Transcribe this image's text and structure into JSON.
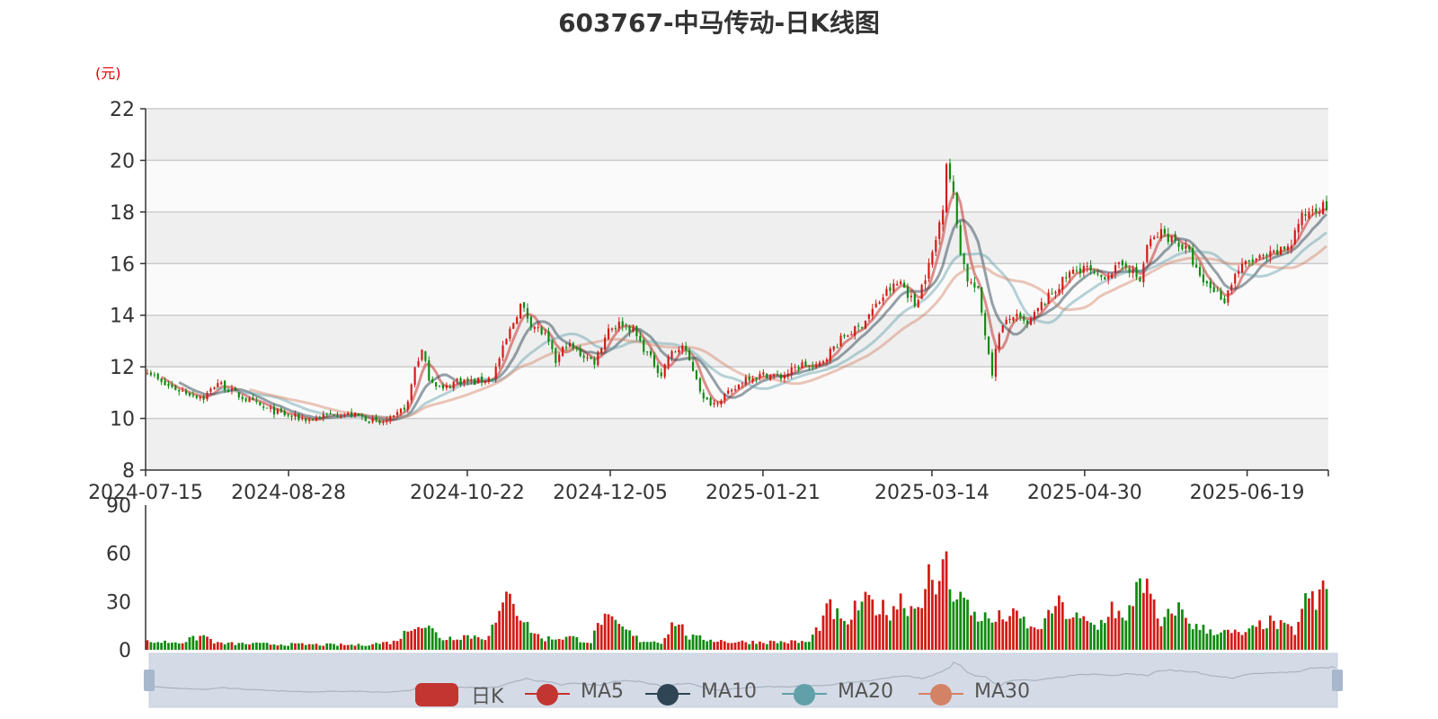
{
  "title": "603767-中马传动-日K线图",
  "unit_label": "(元)",
  "colors": {
    "up": "#c23531",
    "up_bar": "#d31a14",
    "down": "#0f8a0f",
    "ma5": "#c23531",
    "ma10": "#2f4554",
    "ma20": "#61a0a8",
    "ma30": "#d48265",
    "grid": "#cccccc",
    "band": "#efefef",
    "zoom_fill": "#d4dbe6",
    "zoom_handle": "#a7b7cc"
  },
  "legend": [
    {
      "key": "kline",
      "label": "日K"
    },
    {
      "key": "ma5",
      "label": "MA5"
    },
    {
      "key": "ma10",
      "label": "MA10"
    },
    {
      "key": "ma20",
      "label": "MA20"
    },
    {
      "key": "ma30",
      "label": "MA30"
    }
  ],
  "chart_data": [
    {
      "type": "candlestick",
      "name": "price",
      "ylim": [
        8,
        22
      ],
      "yticks": [
        8,
        10,
        12,
        14,
        16,
        18,
        20,
        22
      ],
      "xticks": [
        "2024-07-15",
        "2024-08-28",
        "2024-10-22",
        "2024-12-05",
        "2025-01-21",
        "2025-03-14",
        "2025-04-30",
        "2025-06-19"
      ],
      "grid": true,
      "anchors": [
        [
          0,
          11.9
        ],
        [
          4,
          11.35
        ],
        [
          9,
          11.1
        ],
        [
          16,
          10.8
        ],
        [
          20,
          11.4
        ],
        [
          25,
          10.95
        ],
        [
          33,
          10.4
        ],
        [
          40,
          10.1
        ],
        [
          46,
          9.95
        ],
        [
          53,
          10.2
        ],
        [
          60,
          10.1
        ],
        [
          66,
          9.8
        ],
        [
          70,
          10.0
        ],
        [
          74,
          10.6
        ],
        [
          76,
          12.0
        ],
        [
          78,
          12.6
        ],
        [
          80,
          11.6
        ],
        [
          84,
          11.1
        ],
        [
          88,
          11.5
        ],
        [
          93,
          11.4
        ],
        [
          98,
          11.6
        ],
        [
          103,
          13.4
        ],
        [
          106,
          14.4
        ],
        [
          109,
          13.7
        ],
        [
          113,
          13.2
        ],
        [
          116,
          12.2
        ],
        [
          119,
          12.9
        ],
        [
          123,
          12.5
        ],
        [
          127,
          12.2
        ],
        [
          131,
          13.5
        ],
        [
          135,
          13.7
        ],
        [
          138,
          13.4
        ],
        [
          142,
          12.5
        ],
        [
          146,
          11.7
        ],
        [
          148,
          12.4
        ],
        [
          152,
          12.8
        ],
        [
          156,
          11.6
        ],
        [
          158,
          10.7
        ],
        [
          161,
          10.6
        ],
        [
          164,
          10.9
        ],
        [
          166,
          11.0
        ],
        [
          170,
          11.6
        ],
        [
          176,
          11.7
        ],
        [
          180,
          11.6
        ],
        [
          186,
          12.1
        ],
        [
          190,
          11.95
        ],
        [
          194,
          12.6
        ],
        [
          198,
          13.2
        ],
        [
          202,
          13.5
        ],
        [
          206,
          14.2
        ],
        [
          210,
          14.9
        ],
        [
          214,
          15.3
        ],
        [
          218,
          14.4
        ],
        [
          222,
          15.9
        ],
        [
          224,
          16.9
        ],
        [
          226,
          18.3
        ],
        [
          227,
          20.0
        ],
        [
          229,
          18.6
        ],
        [
          231,
          16.5
        ],
        [
          233,
          15.4
        ],
        [
          236,
          14.9
        ],
        [
          238,
          13.3
        ],
        [
          240,
          11.8
        ],
        [
          242,
          13.4
        ],
        [
          246,
          14.0
        ],
        [
          250,
          13.6
        ],
        [
          254,
          14.4
        ],
        [
          258,
          15.0
        ],
        [
          262,
          15.6
        ],
        [
          266,
          15.9
        ],
        [
          270,
          15.4
        ],
        [
          274,
          15.7
        ],
        [
          278,
          16.0
        ],
        [
          282,
          15.3
        ],
        [
          284,
          16.7
        ],
        [
          288,
          17.2
        ],
        [
          292,
          16.9
        ],
        [
          296,
          16.4
        ],
        [
          299,
          15.4
        ],
        [
          303,
          15.0
        ],
        [
          306,
          14.6
        ],
        [
          309,
          15.6
        ],
        [
          313,
          16.1
        ],
        [
          317,
          16.2
        ],
        [
          321,
          16.4
        ],
        [
          325,
          16.8
        ],
        [
          327,
          17.6
        ],
        [
          329,
          17.9
        ],
        [
          331,
          18.2
        ]
      ],
      "date_range": [
        "2024-07-15",
        "2025-07-14"
      ]
    },
    {
      "type": "bar",
      "name": "volume",
      "ylim": [
        0,
        90
      ],
      "yticks": [
        0,
        30,
        60,
        90
      ],
      "grid": false,
      "anchors": [
        [
          0,
          5
        ],
        [
          10,
          5
        ],
        [
          16,
          9
        ],
        [
          20,
          4
        ],
        [
          60,
          3
        ],
        [
          70,
          5
        ],
        [
          74,
          12
        ],
        [
          76,
          18
        ],
        [
          80,
          14
        ],
        [
          84,
          7
        ],
        [
          90,
          9
        ],
        [
          96,
          8
        ],
        [
          100,
          20
        ],
        [
          102,
          33
        ],
        [
          103,
          44
        ],
        [
          105,
          26
        ],
        [
          108,
          15
        ],
        [
          112,
          7
        ],
        [
          120,
          8
        ],
        [
          126,
          5
        ],
        [
          129,
          20
        ],
        [
          134,
          15
        ],
        [
          140,
          6
        ],
        [
          146,
          5
        ],
        [
          150,
          19
        ],
        [
          154,
          8
        ],
        [
          166,
          5
        ],
        [
          180,
          5
        ],
        [
          188,
          5
        ],
        [
          194,
          27
        ],
        [
          198,
          15
        ],
        [
          202,
          28
        ],
        [
          206,
          30
        ],
        [
          210,
          24
        ],
        [
          214,
          32
        ],
        [
          218,
          26
        ],
        [
          222,
          46
        ],
        [
          224,
          30
        ],
        [
          226,
          64
        ],
        [
          228,
          42
        ],
        [
          230,
          38
        ],
        [
          234,
          24
        ],
        [
          240,
          18
        ],
        [
          244,
          22
        ],
        [
          248,
          20
        ],
        [
          252,
          12
        ],
        [
          256,
          20
        ],
        [
          258,
          30
        ],
        [
          262,
          22
        ],
        [
          266,
          18
        ],
        [
          270,
          14
        ],
        [
          274,
          28
        ],
        [
          278,
          16
        ],
        [
          280,
          33
        ],
        [
          282,
          51
        ],
        [
          284,
          38
        ],
        [
          288,
          14
        ],
        [
          292,
          28
        ],
        [
          298,
          14
        ],
        [
          306,
          11
        ],
        [
          312,
          10
        ],
        [
          318,
          18
        ],
        [
          326,
          12
        ],
        [
          330,
          36
        ],
        [
          332,
          25
        ],
        [
          334,
          44
        ]
      ]
    }
  ]
}
